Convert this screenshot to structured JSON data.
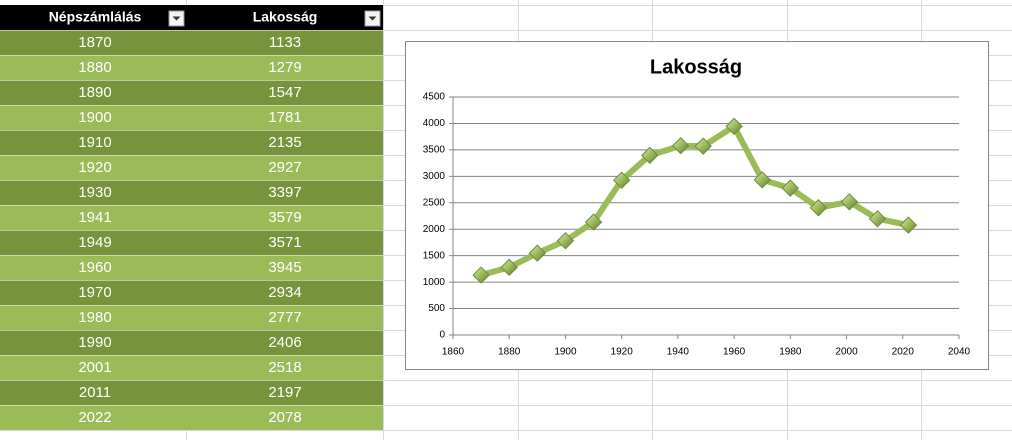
{
  "table": {
    "header": [
      "Népszámlálás",
      "Lakosság"
    ],
    "rows": [
      [
        1870,
        1133
      ],
      [
        1880,
        1279
      ],
      [
        1890,
        1547
      ],
      [
        1900,
        1781
      ],
      [
        1910,
        2135
      ],
      [
        1920,
        2927
      ],
      [
        1930,
        3397
      ],
      [
        1941,
        3579
      ],
      [
        1949,
        3571
      ],
      [
        1960,
        3945
      ],
      [
        1970,
        2934
      ],
      [
        1980,
        2777
      ],
      [
        1990,
        2406
      ],
      [
        2001,
        2518
      ],
      [
        2011,
        2197
      ],
      [
        2022,
        2078
      ]
    ]
  },
  "chart_data": {
    "type": "line",
    "title": "Lakosság",
    "x": [
      1870,
      1880,
      1890,
      1900,
      1910,
      1920,
      1930,
      1941,
      1949,
      1960,
      1970,
      1980,
      1990,
      2001,
      2011,
      2022
    ],
    "values": [
      1133,
      1279,
      1547,
      1781,
      2135,
      2927,
      3397,
      3579,
      3571,
      3945,
      2934,
      2777,
      2406,
      2518,
      2197,
      2078
    ],
    "color": "#9bbb59",
    "xlim": [
      1860,
      2040
    ],
    "xticks": [
      1860,
      1880,
      1900,
      1920,
      1940,
      1960,
      1980,
      2000,
      2020,
      2040
    ],
    "ylim": [
      0,
      4500
    ],
    "yticks": [
      0,
      500,
      1000,
      1500,
      2000,
      2500,
      3000,
      3500,
      4000,
      4500
    ],
    "grid": true
  }
}
